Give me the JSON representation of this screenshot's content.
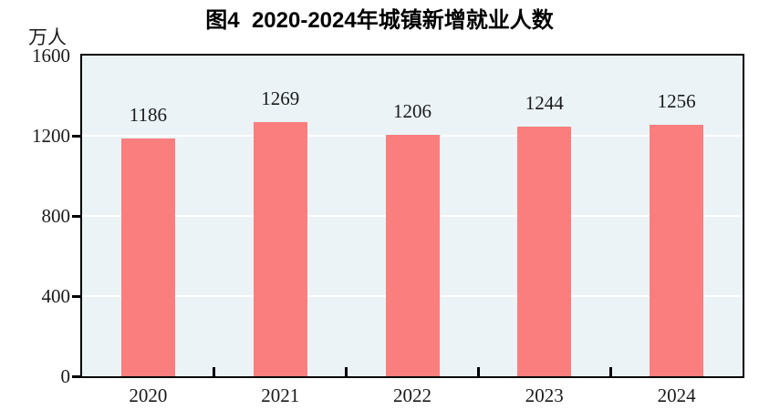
{
  "header": {
    "title": "图4  2020-2024年城镇新增就业人数"
  },
  "axis": {
    "unit_label": "万人"
  },
  "chart_data": {
    "type": "bar",
    "title": "图4  2020-2024年城镇新增就业人数",
    "categories": [
      "2020",
      "2021",
      "2022",
      "2023",
      "2024"
    ],
    "values": [
      1186,
      1269,
      1206,
      1244,
      1256
    ],
    "xlabel": "",
    "ylabel": "万人",
    "ylim": [
      0,
      1600
    ],
    "yticks": [
      0,
      400,
      800,
      1200,
      1600
    ],
    "gridline_values": [
      400,
      800,
      1200
    ],
    "grid": true,
    "legend": "none",
    "data_labels": true,
    "colors": {
      "bar": "#FB7E7E",
      "plot_background": "#EBF3F7",
      "gridline": "#FFFFFF",
      "axis": "#000000",
      "text": "#1A1A1A"
    }
  }
}
